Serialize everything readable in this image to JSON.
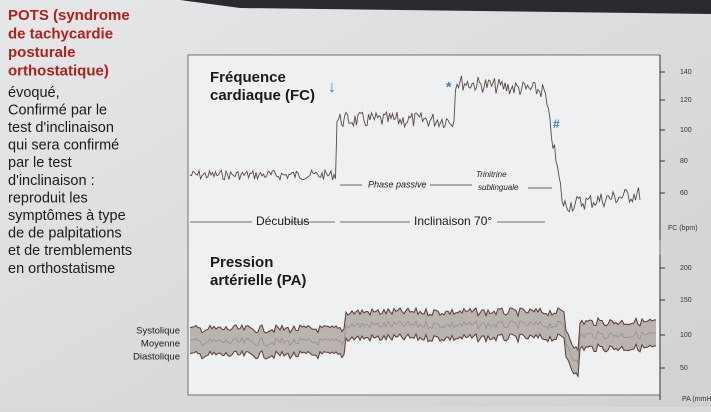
{
  "left": {
    "title": [
      "POTS (syndrome",
      "de tachycardie",
      "posturale",
      "orthostatique)"
    ],
    "body": [
      "évoqué,",
      "Confirmé par le",
      "test d'inclinaison",
      "qui sera confirmé",
      "par le test",
      "d'inclinaison :",
      "reproduit les",
      "symptômes à type",
      "de de palpitations",
      "et de tremblements",
      "en orthostatisme"
    ]
  },
  "figure": {
    "fc": {
      "title": [
        "Fréquence",
        "cardiaque (FC)"
      ],
      "ticks": [
        "140",
        "120",
        "100",
        "80",
        "60"
      ],
      "unit": "FC (bpm)",
      "phase_passive": "Phase passive",
      "trinitrine": [
        "Trinitrine",
        "sublinguale"
      ],
      "decubitus": "Décubitus",
      "inclinaison": "Inclinaison 70°",
      "marks": [
        "↓",
        "*",
        "#"
      ]
    },
    "pa": {
      "title": [
        "Pression",
        "artérielle (PA)"
      ],
      "ticks": [
        "200",
        "150",
        "100",
        "50"
      ],
      "unit": "PA (mmH",
      "legend": [
        "Systolique",
        "Moyenne",
        "Diastolique"
      ]
    }
  }
}
